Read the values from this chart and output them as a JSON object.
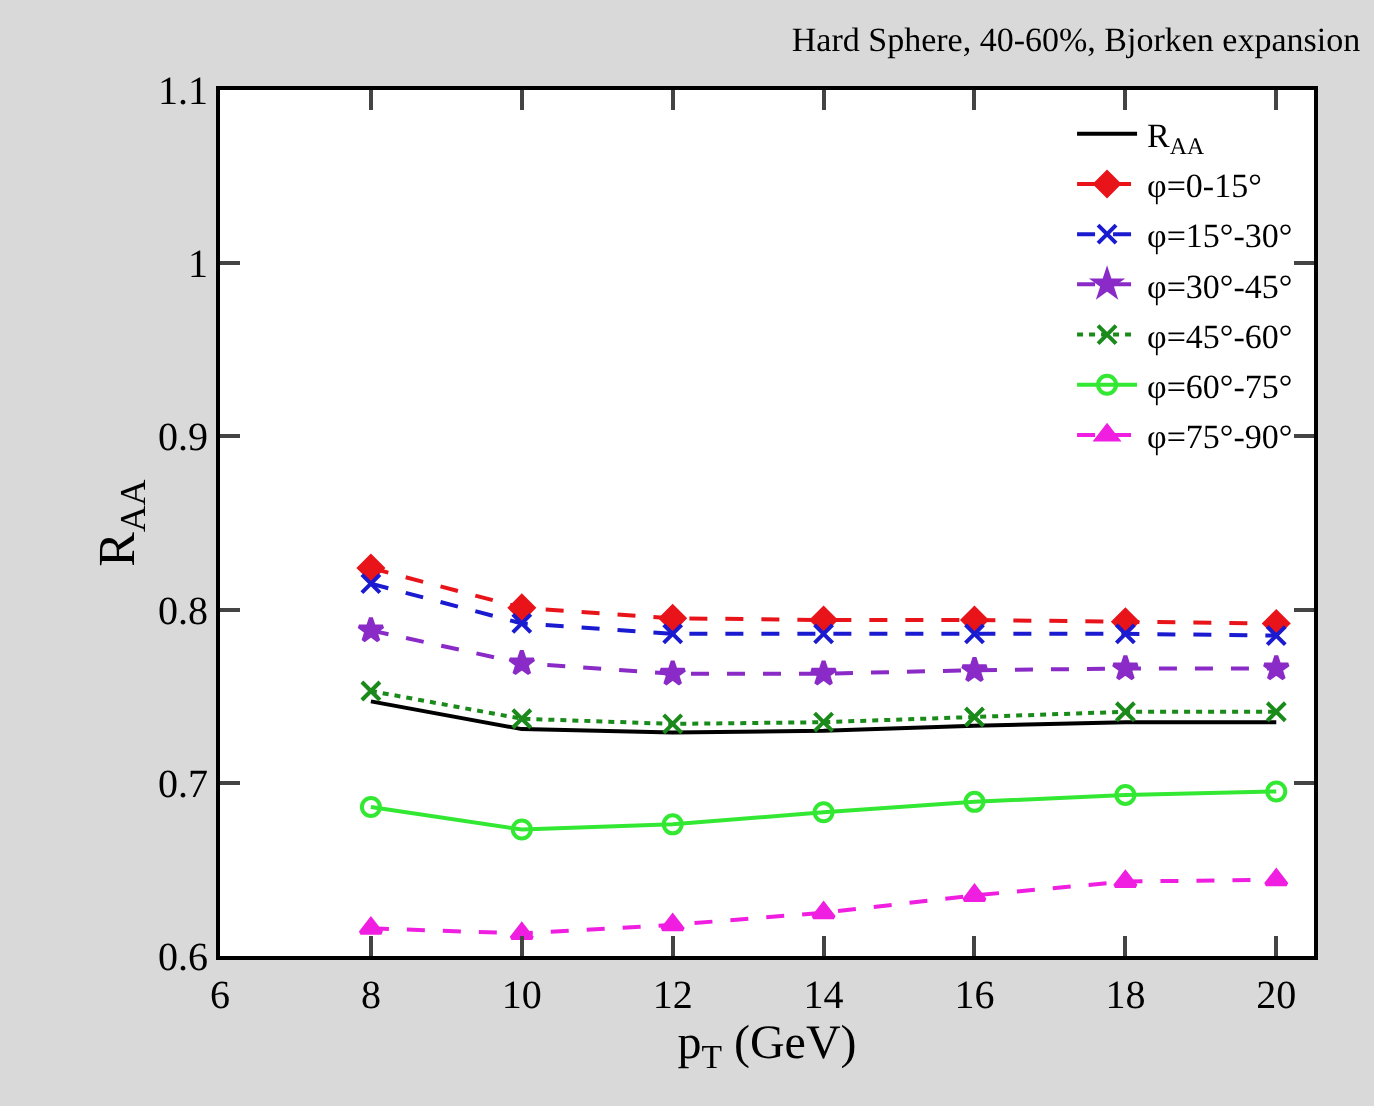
{
  "chart_data": {
    "type": "line",
    "title": "Hard Sphere, 40-60%, Bjorken expansion",
    "xlabel": "p$_{T}$ (GeV)",
    "ylabel": "R$_{AA}$",
    "x": [
      8,
      10,
      12,
      14,
      16,
      18,
      20
    ],
    "xlim": [
      6,
      20.5
    ],
    "xticks": [
      6,
      8,
      10,
      12,
      14,
      16,
      18,
      20
    ],
    "ylim": [
      0.6,
      1.1
    ],
    "yticks": [
      0.6,
      0.7,
      0.8,
      0.9,
      1,
      1.1
    ],
    "legend": "top right",
    "series": [
      {
        "name": "R$_{AA}$",
        "color": "#000000",
        "marker": "none",
        "line_style": "solid",
        "values": [
          0.747,
          0.731,
          0.729,
          0.73,
          0.733,
          0.735,
          0.735
        ]
      },
      {
        "name": "φ=0-15°",
        "color": "#e8141a",
        "marker": "diamond",
        "line_style": "dashed",
        "values": [
          0.824,
          0.801,
          0.795,
          0.794,
          0.794,
          0.793,
          0.792
        ]
      },
      {
        "name": "φ=15°-30°",
        "color": "#1a1ad0",
        "marker": "cross",
        "line_style": "dashed",
        "values": [
          0.815,
          0.792,
          0.786,
          0.786,
          0.786,
          0.786,
          0.785
        ]
      },
      {
        "name": "φ=30°-45°",
        "color": "#8a2bc8",
        "marker": "star",
        "line_style": "dashed",
        "values": [
          0.788,
          0.769,
          0.763,
          0.763,
          0.765,
          0.766,
          0.766
        ]
      },
      {
        "name": "φ=45°-60°",
        "color": "#1a8a1a",
        "marker": "cross",
        "line_style": "dotted",
        "values": [
          0.753,
          0.737,
          0.734,
          0.735,
          0.738,
          0.741,
          0.741
        ]
      },
      {
        "name": "φ=60°-75°",
        "color": "#33e833",
        "marker": "circle",
        "line_style": "solid",
        "values": [
          0.686,
          0.673,
          0.676,
          0.683,
          0.689,
          0.693,
          0.695
        ]
      },
      {
        "name": "φ=75°-90°",
        "color": "#f01ee0",
        "marker": "triangle",
        "line_style": "dashed",
        "values": [
          0.616,
          0.613,
          0.618,
          0.625,
          0.635,
          0.643,
          0.644
        ]
      }
    ]
  }
}
